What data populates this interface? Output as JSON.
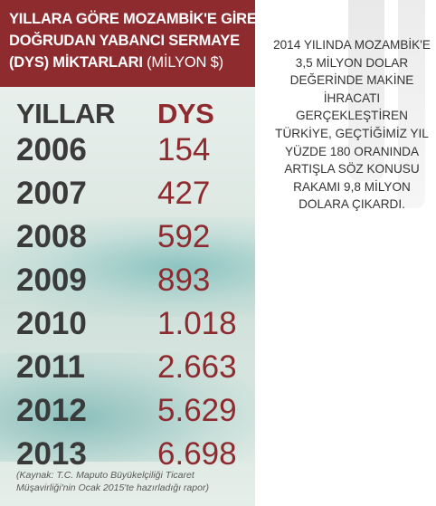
{
  "header": {
    "line1": "YILLARA GÖRE MOZAMBİK'E GİREN",
    "line2": "DOĞRUDAN YABANCI SERMAYE",
    "line3_bold": "(DYS) MİKTARLARI",
    "line3_light": " (MİLYON $)"
  },
  "columns": {
    "year": "YILLAR",
    "value": "DYS"
  },
  "chart_data": {
    "type": "table",
    "title": "YILLARA GÖRE MOZAMBİK'E GİREN DOĞRUDAN YABANCI SERMAYE (DYS) MİKTARLARI (MİLYON $)",
    "columns": [
      "YILLAR",
      "DYS"
    ],
    "rows": [
      {
        "year": "2006",
        "value_label": "154",
        "value": 154
      },
      {
        "year": "2007",
        "value_label": "427",
        "value": 427
      },
      {
        "year": "2008",
        "value_label": "592",
        "value": 592
      },
      {
        "year": "2009",
        "value_label": "893",
        "value": 893
      },
      {
        "year": "2010",
        "value_label": "1.018",
        "value": 1018
      },
      {
        "year": "2011",
        "value_label": "2.663",
        "value": 2663
      },
      {
        "year": "2012",
        "value_label": "5.629",
        "value": 5629
      },
      {
        "year": "2013",
        "value_label": "6.698",
        "value": 6698
      }
    ]
  },
  "source_note": "(Kaynak: T.C. Maputo Büyükelçiliği Ticaret Müşavirliği'nin Ocak 2015'te hazırladığı rapor)",
  "side_note": "2014 YILINDA MOZAMBİK'E 3,5 MİLYON DOLAR DEĞERİNDE MAKİNE İHRACATI GERÇEKLEŞTİREN TÜRKİYE, GEÇTİĞİMİZ YIL YÜZDE 180 ORANINDA ARTIŞLA SÖZ KONUSU RAKAMI 9,8 MİLYON DOLARA ÇIKARDI.",
  "colors": {
    "header_bg": "#8e2b2f",
    "year_text": "#3a3a3a",
    "value_text": "#8e2b2f",
    "dys_head": "#8e2b2f"
  }
}
